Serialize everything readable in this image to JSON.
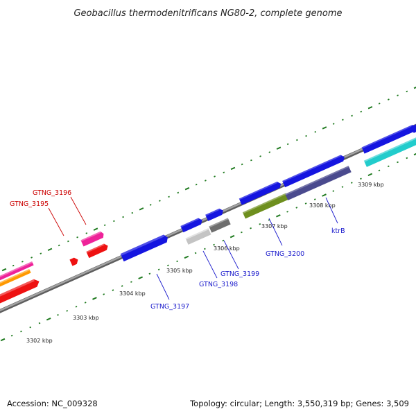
{
  "title": "Geobacillus thermodenitrificans NG80-2, complete genome",
  "footer": {
    "accession": "Accession: NC_009328",
    "topology": "Topology: circular; Length: 3,550,319 bp; Genes: 3,509"
  },
  "colors": {
    "backbone": "#8a8a8a",
    "tick": "#1f7a1f",
    "gene_blue": "#1515e0",
    "gene_red": "#ee1111",
    "gene_pink": "#ee2299",
    "gene_orange": "#ff9900",
    "gene_cyan": "#22cccc",
    "gene_olive": "#6e8f1e",
    "gene_navy": "#4a4a8e",
    "gene_lightgray": "#c4c4c4",
    "gene_darkgray": "#6e6e6e",
    "label_red": "#cc0000",
    "label_blue": "#1a1acc"
  },
  "kbp_labels": [
    "3302 kbp",
    "3303 kbp",
    "3304 kbp",
    "3305 kbp",
    "3306 kbp",
    "3307 kbp",
    "3308 kbp",
    "3309 kbp"
  ],
  "gene_labels": {
    "gtng_3195": "GTNG_3195",
    "gtng_3196": "GTNG_3196",
    "gtng_3197": "GTNG_3197",
    "gtng_3198": "GTNG_3198",
    "gtng_3199": "GTNG_3199",
    "gtng_3200": "GTNG_3200",
    "ktrb": "ktrB"
  }
}
